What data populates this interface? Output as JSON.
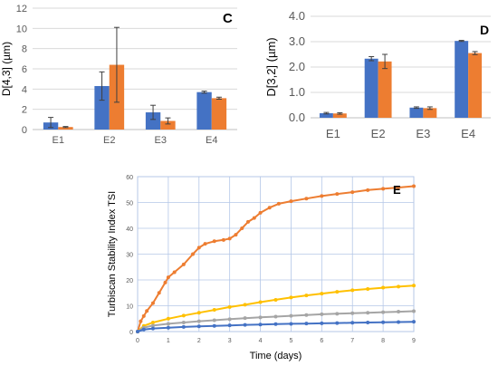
{
  "colors": {
    "blue": "#4472C4",
    "orange": "#ED7D31",
    "gray": "#A5A5A5",
    "yellow": "#FFC000",
    "grid": "#D9D9D9",
    "grid_e": "#B4C7E7",
    "axis": "#BFBFBF",
    "errbar": "#404040"
  },
  "chart_data": [
    {
      "panel": "C",
      "type": "bar",
      "ylabel": "D[4,3] (µm)",
      "categories": [
        "E1",
        "E2",
        "E3",
        "E4"
      ],
      "series": [
        {
          "values": [
            0.7,
            4.3,
            1.7,
            3.7
          ],
          "errors": [
            0.5,
            1.4,
            0.7,
            0.1
          ]
        },
        {
          "values": [
            0.25,
            6.4,
            0.85,
            3.1
          ],
          "errors": [
            0.05,
            3.7,
            0.3,
            0.1
          ]
        }
      ],
      "ylim": [
        0,
        12
      ],
      "yticks": [
        "0",
        "2",
        "4",
        "6",
        "8",
        "10",
        "12"
      ],
      "grid": true
    },
    {
      "panel": "D",
      "type": "bar",
      "ylabel": "D[3,2] (µm)",
      "categories": [
        "E1",
        "E2",
        "E3",
        "E4"
      ],
      "series": [
        {
          "values": [
            0.18,
            2.33,
            0.4,
            3.03
          ],
          "errors": [
            0.03,
            0.08,
            0.03,
            0.02
          ]
        },
        {
          "values": [
            0.17,
            2.22,
            0.38,
            2.55
          ],
          "errors": [
            0.03,
            0.28,
            0.05,
            0.06
          ]
        }
      ],
      "ylim": [
        0,
        4
      ],
      "yticks": [
        "0.0",
        "1.0",
        "2.0",
        "3.0",
        "4.0"
      ],
      "grid": true
    },
    {
      "panel": "E",
      "type": "line",
      "xlabel": "Time (days)",
      "ylabel": "Turbiscan Stability Index TSI",
      "xlim": [
        0,
        9
      ],
      "ylim": [
        0,
        60
      ],
      "xticks": [
        "0",
        "1",
        "2",
        "3",
        "4",
        "5",
        "6",
        "7",
        "8",
        "9"
      ],
      "yticks": [
        "0",
        "10",
        "20",
        "30",
        "40",
        "50",
        "60"
      ],
      "grid": true,
      "series": [
        {
          "color": "orange",
          "x": [
            0,
            0.1,
            0.2,
            0.3,
            0.5,
            0.7,
            0.9,
            1.0,
            1.2,
            1.5,
            1.8,
            2.0,
            2.2,
            2.5,
            2.8,
            3.0,
            3.2,
            3.4,
            3.6,
            3.8,
            4.0,
            4.3,
            4.6,
            5.0,
            5.5,
            6.0,
            6.5,
            7.0,
            7.5,
            8.0,
            8.5,
            9.0
          ],
          "y": [
            0,
            4,
            6,
            8,
            11,
            15,
            19,
            21,
            23,
            26,
            30,
            32.5,
            34,
            35,
            35.5,
            36,
            37.5,
            40,
            42.5,
            44,
            46,
            48,
            49.5,
            50.5,
            51.5,
            52.5,
            53.3,
            54,
            54.8,
            55.3,
            55.8,
            56.3
          ]
        },
        {
          "color": "yellow",
          "x": [
            0,
            0.2,
            0.5,
            1,
            1.5,
            2,
            2.5,
            3,
            3.5,
            4,
            4.5,
            5,
            5.5,
            6,
            6.5,
            7,
            7.5,
            8,
            8.5,
            9
          ],
          "y": [
            0,
            2.2,
            3.5,
            5,
            6.2,
            7.3,
            8.4,
            9.5,
            10.4,
            11.4,
            12.3,
            13.2,
            14,
            14.7,
            15.4,
            16,
            16.5,
            17,
            17.4,
            17.8
          ]
        },
        {
          "color": "gray",
          "x": [
            0,
            0.2,
            0.5,
            1,
            1.5,
            2,
            2.5,
            3,
            3.5,
            4,
            4.5,
            5,
            5.5,
            6,
            6.5,
            7,
            7.5,
            8,
            8.5,
            9
          ],
          "y": [
            0,
            1.5,
            2.3,
            3,
            3.5,
            4,
            4.4,
            4.8,
            5.2,
            5.5,
            5.8,
            6.1,
            6.4,
            6.7,
            6.9,
            7.1,
            7.3,
            7.5,
            7.7,
            7.9
          ]
        },
        {
          "color": "blue",
          "x": [
            0,
            0.2,
            0.5,
            1,
            1.5,
            2,
            2.5,
            3,
            3.5,
            4,
            4.5,
            5,
            5.5,
            6,
            6.5,
            7,
            7.5,
            8,
            8.5,
            9
          ],
          "y": [
            0,
            0.8,
            1.2,
            1.5,
            1.8,
            2.0,
            2.2,
            2.4,
            2.6,
            2.7,
            2.9,
            3.0,
            3.1,
            3.2,
            3.3,
            3.4,
            3.5,
            3.6,
            3.7,
            3.8
          ]
        }
      ]
    }
  ]
}
